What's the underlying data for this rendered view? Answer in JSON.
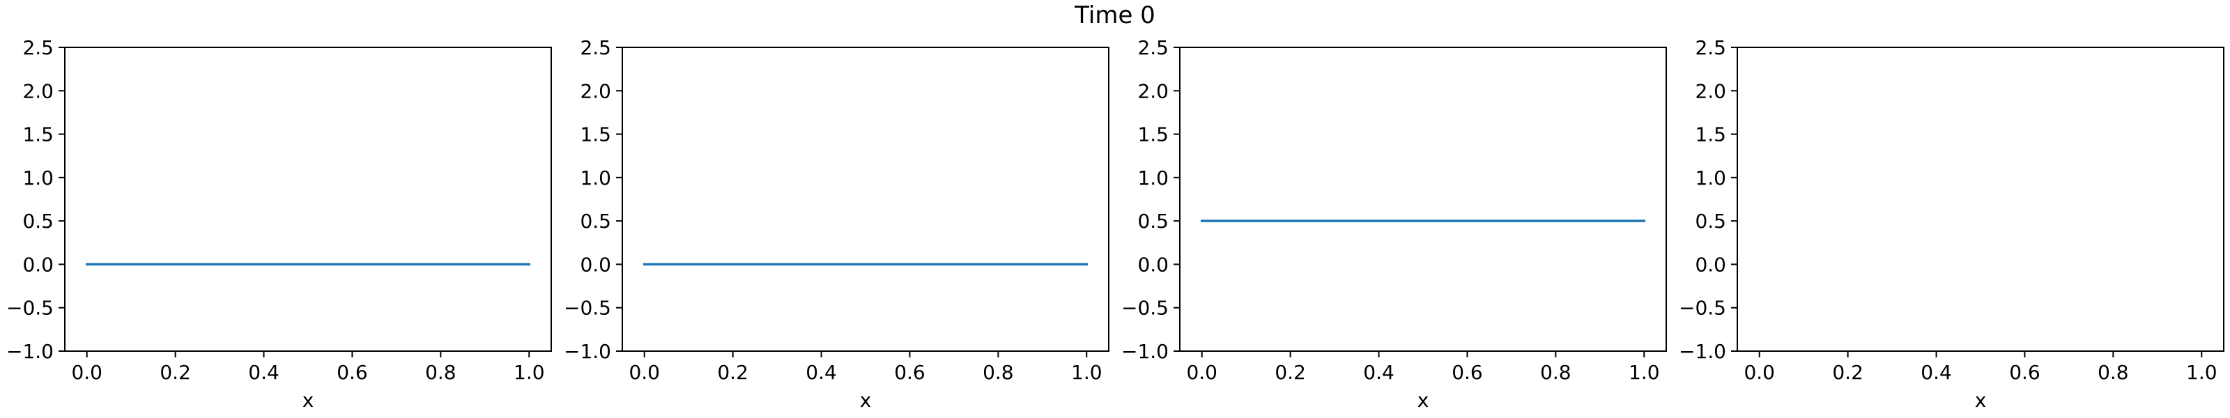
{
  "figure": {
    "suptitle": "Time 0"
  },
  "chart_data": [
    {
      "type": "line",
      "title": "",
      "xlabel": "x",
      "ylabel": "",
      "xlim": [
        -0.05,
        1.05
      ],
      "ylim": [
        -1.0,
        2.5
      ],
      "x_ticks": [
        0.0,
        0.2,
        0.4,
        0.6,
        0.8,
        1.0
      ],
      "x_tick_labels": [
        "0.0",
        "0.2",
        "0.4",
        "0.6",
        "0.8",
        "1.0"
      ],
      "y_ticks": [
        -1.0,
        -0.5,
        0.0,
        0.5,
        1.0,
        1.5,
        2.0,
        2.5
      ],
      "y_tick_labels": [
        "−1.0",
        "−0.5",
        "0.0",
        "0.5",
        "1.0",
        "1.5",
        "2.0",
        "2.5"
      ],
      "grid": false,
      "series": [
        {
          "color": "#1f77b4",
          "x": [
            0.0,
            1.0
          ],
          "y": [
            0.0,
            0.0
          ]
        }
      ]
    },
    {
      "type": "line",
      "title": "",
      "xlabel": "x",
      "ylabel": "",
      "xlim": [
        -0.05,
        1.05
      ],
      "ylim": [
        -1.0,
        2.5
      ],
      "x_ticks": [
        0.0,
        0.2,
        0.4,
        0.6,
        0.8,
        1.0
      ],
      "x_tick_labels": [
        "0.0",
        "0.2",
        "0.4",
        "0.6",
        "0.8",
        "1.0"
      ],
      "y_ticks": [
        -1.0,
        -0.5,
        0.0,
        0.5,
        1.0,
        1.5,
        2.0,
        2.5
      ],
      "y_tick_labels": [
        "−1.0",
        "−0.5",
        "0.0",
        "0.5",
        "1.0",
        "1.5",
        "2.0",
        "2.5"
      ],
      "grid": false,
      "series": [
        {
          "color": "#1f77b4",
          "x": [
            0.0,
            1.0
          ],
          "y": [
            0.0,
            0.0
          ]
        }
      ]
    },
    {
      "type": "line",
      "title": "",
      "xlabel": "x",
      "ylabel": "",
      "xlim": [
        -0.05,
        1.05
      ],
      "ylim": [
        -1.0,
        2.5
      ],
      "x_ticks": [
        0.0,
        0.2,
        0.4,
        0.6,
        0.8,
        1.0
      ],
      "x_tick_labels": [
        "0.0",
        "0.2",
        "0.4",
        "0.6",
        "0.8",
        "1.0"
      ],
      "y_ticks": [
        -1.0,
        -0.5,
        0.0,
        0.5,
        1.0,
        1.5,
        2.0,
        2.5
      ],
      "y_tick_labels": [
        "−1.0",
        "−0.5",
        "0.0",
        "0.5",
        "1.0",
        "1.5",
        "2.0",
        "2.5"
      ],
      "grid": false,
      "series": [
        {
          "color": "#1f77b4",
          "x": [
            0.0,
            1.0
          ],
          "y": [
            0.5,
            0.5
          ]
        }
      ]
    },
    {
      "type": "line",
      "title": "",
      "xlabel": "x",
      "ylabel": "",
      "xlim": [
        -0.05,
        1.05
      ],
      "ylim": [
        -1.0,
        2.5
      ],
      "x_ticks": [
        0.0,
        0.2,
        0.4,
        0.6,
        0.8,
        1.0
      ],
      "x_tick_labels": [
        "0.0",
        "0.2",
        "0.4",
        "0.6",
        "0.8",
        "1.0"
      ],
      "y_ticks": [
        -1.0,
        -0.5,
        0.0,
        0.5,
        1.0,
        1.5,
        2.0,
        2.5
      ],
      "y_tick_labels": [
        "−1.0",
        "−0.5",
        "0.0",
        "0.5",
        "1.0",
        "1.5",
        "2.0",
        "2.5"
      ],
      "grid": false,
      "series": []
    }
  ]
}
